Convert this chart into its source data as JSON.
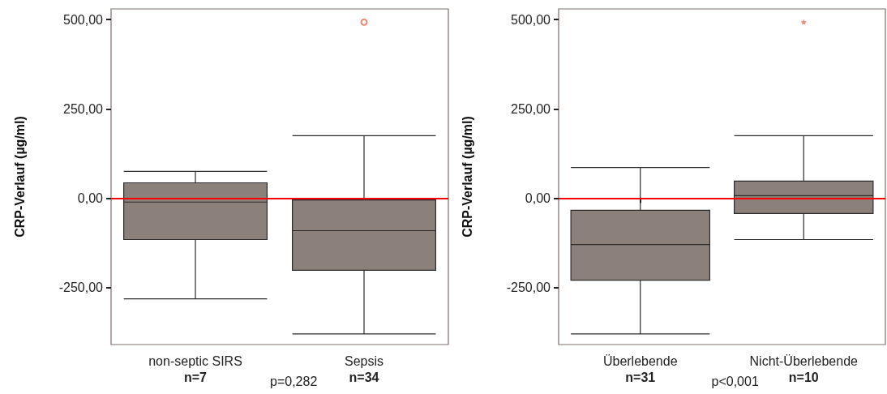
{
  "chart_data": [
    {
      "type": "box",
      "ylabel": "CRP-Verlauf (µg/ml)",
      "categories": [
        "non-septic SIRS\nn=7",
        "Sepsis\nn=34"
      ],
      "series": [
        {
          "color": "#8c807b",
          "boxes": [
            {
              "low": -282,
              "q1": -116,
              "median": -11,
              "q3": 43,
              "high": 75
            },
            {
              "low": -380,
              "q1": -202,
              "median": -91,
              "q3": -5,
              "high": 175,
              "outliers": [
                493
              ]
            }
          ]
        }
      ],
      "ylim": [
        -410,
        530
      ],
      "yticks": [
        {
          "value": 500,
          "label": "500,00"
        },
        {
          "value": 250,
          "label": "250,00"
        },
        {
          "value": 0,
          "label": "0,00"
        },
        {
          "value": -250,
          "label": "-250,00"
        }
      ],
      "ref_lines": [
        {
          "axis": "y",
          "value": 0,
          "label": null,
          "color": "#ff0000"
        }
      ],
      "annotations": [
        "p=0,282"
      ],
      "marker": "circle",
      "grid": false
    },
    {
      "type": "box",
      "ylabel": "CRP-Verlauf (µg/ml)",
      "categories": [
        "Überlebende\nn=31",
        "Nicht-Überlebende\nn=10"
      ],
      "series": [
        {
          "color": "#8c807b",
          "boxes": [
            {
              "low": -380,
              "q1": -230,
              "median": -130,
              "q3": -34,
              "high": 86
            },
            {
              "low": -116,
              "q1": -43,
              "median": 7,
              "q3": 48,
              "high": 175,
              "outliers": [
                493
              ]
            }
          ]
        }
      ],
      "ylim": [
        -410,
        530
      ],
      "yticks": [
        {
          "value": 500,
          "label": "500,00"
        },
        {
          "value": 250,
          "label": "250,00"
        },
        {
          "value": 0,
          "label": "0,00"
        },
        {
          "value": -250,
          "label": "-250,00"
        }
      ],
      "ref_lines": [
        {
          "axis": "y",
          "value": 0,
          "label": null,
          "color": "#ff0000"
        }
      ],
      "annotations": [
        "p<0,001"
      ],
      "marker": "star",
      "grid": false
    }
  ]
}
